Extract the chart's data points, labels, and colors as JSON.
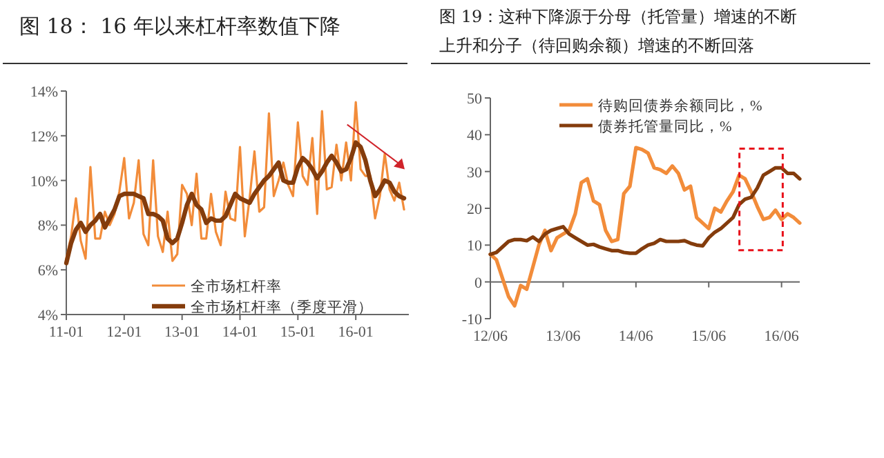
{
  "chart_data": [
    {
      "type": "line",
      "title": "图 18：  16 年以来杠杆率数值下降",
      "categories": [
        "11-01",
        null,
        null,
        null,
        null,
        null,
        null,
        null,
        null,
        null,
        null,
        null,
        "12-01",
        null,
        null,
        null,
        null,
        null,
        null,
        null,
        null,
        null,
        null,
        null,
        "13-01",
        null,
        null,
        null,
        null,
        null,
        null,
        null,
        null,
        null,
        null,
        null,
        "14-01",
        null,
        null,
        null,
        null,
        null,
        null,
        null,
        null,
        null,
        null,
        null,
        "15-01",
        null,
        null,
        null,
        null,
        null,
        null,
        null,
        null,
        null,
        null,
        null,
        "16-01",
        null,
        null,
        null,
        null,
        null,
        null,
        null,
        null,
        null,
        null
      ],
      "ylim": [
        4,
        14
      ],
      "yticks": [
        {
          "value": 4,
          "label": "4%"
        },
        {
          "value": 6,
          "label": "6%"
        },
        {
          "value": 8,
          "label": "8%"
        },
        {
          "value": 10,
          "label": "10%"
        },
        {
          "value": 12,
          "label": "12%"
        },
        {
          "value": 14,
          "label": "14%"
        }
      ],
      "legend": "bottom",
      "series": [
        {
          "name": "全市场杠杆率",
          "color": "#f28c3a",
          "values": [
            6.5,
            7.5,
            9.2,
            7.3,
            6.5,
            10.6,
            7.4,
            7.4,
            8.6,
            8.0,
            8.5,
            9.5,
            11.0,
            8.3,
            9.0,
            10.9,
            7.6,
            7.1,
            10.9,
            7.5,
            6.8,
            8.6,
            6.4,
            6.7,
            9.8,
            9.4,
            8.0,
            10.3,
            7.4,
            7.4,
            9.4,
            7.7,
            7.1,
            9.5,
            8.3,
            8.2,
            11.5,
            7.5,
            9.2,
            11.3,
            8.6,
            8.8,
            13.0,
            9.3,
            10.0,
            10.8,
            9.8,
            9.3,
            12.6,
            10.2,
            9.8,
            11.9,
            8.5,
            13.1,
            9.6,
            9.7,
            11.6,
            10.0,
            11.7,
            10.0,
            13.5,
            10.5,
            10.2,
            10.2,
            8.3,
            9.3,
            11.2,
            9.6,
            9.1,
            9.9,
            8.7
          ]
        },
        {
          "name": "全市场杠杆率（季度平滑）",
          "color": "#843c0c",
          "values": [
            6.3,
            7.2,
            7.8,
            8.1,
            7.7,
            8.0,
            8.2,
            8.5,
            7.9,
            8.3,
            8.7,
            9.3,
            9.4,
            9.4,
            9.4,
            9.3,
            9.2,
            8.5,
            8.5,
            8.4,
            8.2,
            7.4,
            7.2,
            7.4,
            8.1,
            8.9,
            9.4,
            8.9,
            8.7,
            8.1,
            8.3,
            8.2,
            8.2,
            8.4,
            8.9,
            9.4,
            9.2,
            9.1,
            9.0,
            9.4,
            9.7,
            10.0,
            10.2,
            10.5,
            10.8,
            10.0,
            9.9,
            9.9,
            10.6,
            11.0,
            10.8,
            10.5,
            10.1,
            10.4,
            10.8,
            11.1,
            10.8,
            10.4,
            10.5,
            11.0,
            11.7,
            11.5,
            10.9,
            10.0,
            9.3,
            9.6,
            10.0,
            9.9,
            9.5,
            9.3,
            9.2
          ]
        }
      ]
    },
    {
      "type": "line",
      "title": "图 19：这种下降源于分母（托管量）增速的不断上升和分子（待回购余额）增速的不断回落",
      "categories": [
        "12/06",
        null,
        null,
        null,
        null,
        null,
        null,
        null,
        null,
        null,
        null,
        null,
        "13/06",
        null,
        null,
        null,
        null,
        null,
        null,
        null,
        null,
        null,
        null,
        null,
        "14/06",
        null,
        null,
        null,
        null,
        null,
        null,
        null,
        null,
        null,
        null,
        null,
        "15/06",
        null,
        null,
        null,
        null,
        null,
        null,
        null,
        null,
        null,
        null,
        null,
        "16/06",
        null,
        null,
        null
      ],
      "ylim": [
        -10,
        50
      ],
      "yticks": [
        {
          "value": -10,
          "label": "-10"
        },
        0,
        10,
        20,
        30,
        40,
        50
      ],
      "legend": "top",
      "series": [
        {
          "name": "待购回债券余额同比，%",
          "color": "#f28c3a",
          "values": [
            7.5,
            6,
            1,
            -4,
            -6.5,
            -1,
            -2,
            4,
            10,
            14,
            8.5,
            12,
            13,
            14,
            18.5,
            27,
            28,
            22,
            21,
            14,
            11,
            11.5,
            24,
            26,
            36.5,
            36,
            35,
            31,
            30.5,
            29.5,
            31.5,
            29.5,
            25,
            26,
            17.5,
            16,
            14.5,
            20,
            19,
            22,
            24.5,
            29,
            28,
            24.5,
            20.5,
            17,
            17.5,
            19.5,
            17,
            18.5,
            17.5,
            16
          ]
        },
        {
          "name": "债券托管量同比，%",
          "color": "#843c0c",
          "values": [
            7.5,
            8,
            9.5,
            11,
            11.5,
            11.5,
            11.2,
            12.2,
            11,
            13,
            14,
            14.5,
            15,
            13,
            12,
            11,
            10,
            10.2,
            9.5,
            9,
            8.5,
            8.5,
            8,
            7.8,
            7.8,
            9,
            10,
            10.5,
            11.5,
            11,
            11,
            11,
            11.2,
            10.5,
            10,
            9.8,
            12,
            13.5,
            14.5,
            16,
            17.5,
            21,
            22.5,
            23,
            25.5,
            29,
            30,
            31,
            31,
            29.5,
            29.5,
            28
          ]
        }
      ]
    }
  ]
}
